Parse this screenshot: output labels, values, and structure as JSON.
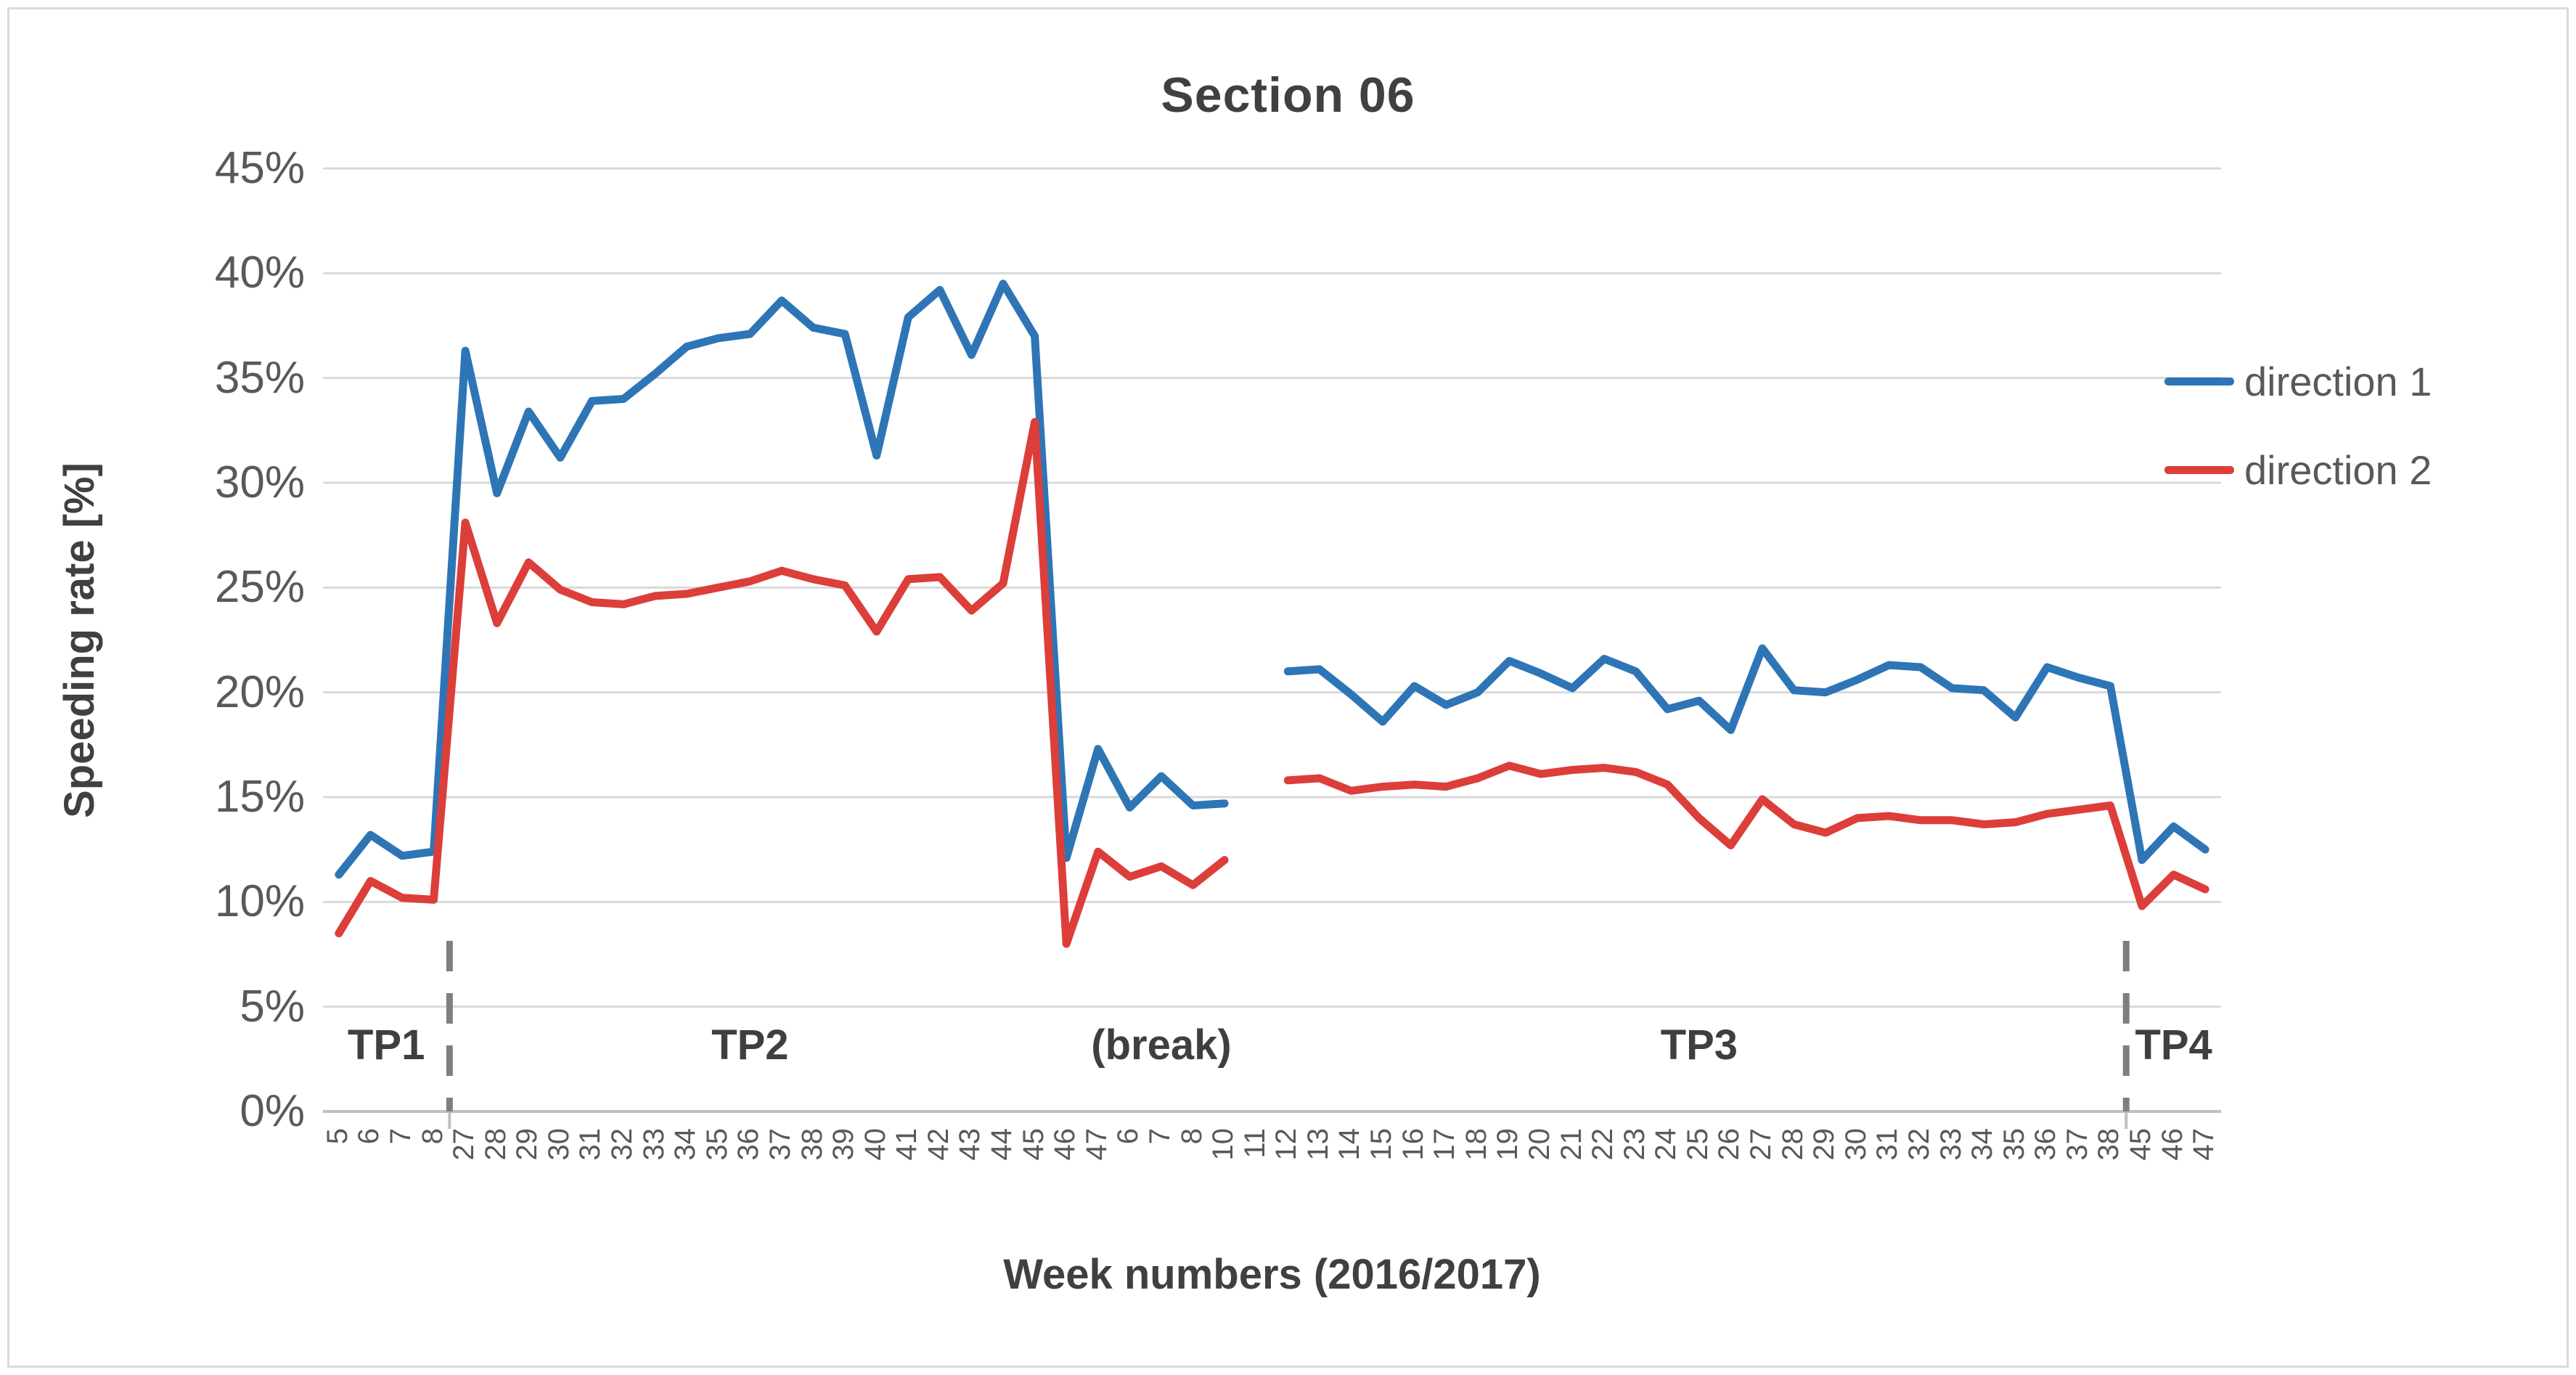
{
  "title": "Section 06",
  "legend": {
    "items": [
      {
        "label": "direction 1",
        "color": "#2E75B6"
      },
      {
        "label": "direction 2",
        "color": "#DC3E3A"
      }
    ]
  },
  "colors": {
    "series_blue": "#2E75B6",
    "series_red": "#DC3E3A",
    "gridline": "#D9D9D9",
    "axis_line": "#BFBFBF",
    "separator": "#7F7F7F",
    "tick_text": "#595959",
    "title_text": "#404040"
  },
  "chart_data": {
    "type": "line",
    "title": "Section 06",
    "xlabel": "Week numbers (2016/2017)",
    "ylabel": "Speeding rate [%]",
    "ylim": [
      0,
      45
    ],
    "y_tick_step": 5,
    "y_tick_labels": [
      "0%",
      "5%",
      "10%",
      "15%",
      "20%",
      "25%",
      "30%",
      "35%",
      "40%",
      "45%"
    ],
    "grid": "horizontal",
    "legend_position": "right",
    "categories": [
      "5",
      "6",
      "7",
      "8",
      "27",
      "28",
      "29",
      "30",
      "31",
      "32",
      "33",
      "34",
      "35",
      "36",
      "37",
      "38",
      "39",
      "40",
      "41",
      "42",
      "43",
      "44",
      "45",
      "46",
      "47",
      "6",
      "7",
      "8",
      "10",
      "11",
      "12",
      "13",
      "14",
      "15",
      "16",
      "17",
      "18",
      "19",
      "20",
      "21",
      "22",
      "23",
      "24",
      "25",
      "26",
      "27",
      "28",
      "29",
      "30",
      "31",
      "32",
      "33",
      "34",
      "35",
      "36",
      "37",
      "38",
      "45",
      "46",
      "47"
    ],
    "series": [
      {
        "name": "direction 1",
        "color": "#2E75B6",
        "values": [
          11.3,
          13.2,
          12.2,
          12.4,
          36.3,
          29.5,
          33.4,
          31.2,
          33.9,
          34.0,
          35.2,
          36.5,
          36.9,
          37.1,
          38.7,
          37.4,
          37.1,
          31.3,
          37.9,
          39.2,
          36.1,
          39.5,
          37.0,
          12.1,
          17.3,
          14.5,
          16.0,
          14.6,
          14.7,
          null,
          21.0,
          21.1,
          19.9,
          18.6,
          20.3,
          19.4,
          20.0,
          21.5,
          20.9,
          20.2,
          21.6,
          21.0,
          19.2,
          19.6,
          18.2,
          22.1,
          20.1,
          20.0,
          20.6,
          21.3,
          21.2,
          20.2,
          20.1,
          18.8,
          21.2,
          20.7,
          20.3,
          12.0,
          13.6,
          12.5
        ]
      },
      {
        "name": "direction 2",
        "color": "#DC3E3A",
        "values": [
          8.5,
          11.0,
          10.2,
          10.1,
          28.1,
          23.3,
          26.2,
          24.9,
          24.3,
          24.2,
          24.6,
          24.7,
          25.0,
          25.3,
          25.8,
          25.4,
          25.1,
          22.9,
          25.4,
          25.5,
          23.9,
          25.2,
          32.9,
          8.0,
          12.4,
          11.2,
          11.7,
          10.8,
          12.0,
          null,
          15.8,
          15.9,
          15.3,
          15.5,
          15.6,
          15.5,
          15.9,
          16.5,
          16.1,
          16.3,
          16.4,
          16.2,
          15.6,
          14.0,
          12.7,
          14.9,
          13.7,
          13.3,
          14.0,
          14.1,
          13.9,
          13.9,
          13.7,
          13.8,
          14.2,
          14.4,
          14.6,
          9.8,
          11.3,
          10.6
        ]
      }
    ],
    "period_labels": [
      {
        "label": "TP1",
        "start": 0,
        "end": 3
      },
      {
        "label": "TP2",
        "start": 4,
        "end": 22
      },
      {
        "label": "(break)",
        "start": 23,
        "end": 29
      },
      {
        "label": "TP3",
        "start": 30,
        "end": 56
      },
      {
        "label": "TP4",
        "start": 57,
        "end": 59
      }
    ],
    "separator_after_category_indices": [
      4,
      57
    ]
  }
}
